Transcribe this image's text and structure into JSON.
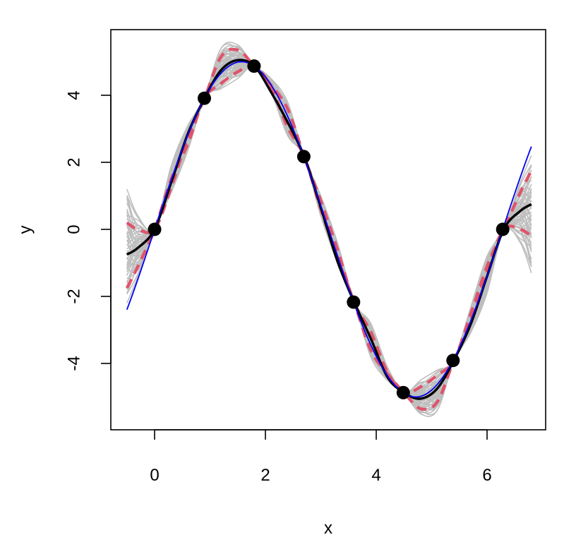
{
  "chart_data": {
    "type": "line",
    "title": "",
    "xlabel": "x",
    "ylabel": "y",
    "xlim": [
      -0.5,
      6.8
    ],
    "ylim": [
      -6,
      6
    ],
    "x_ticks": [
      0,
      2,
      4,
      6
    ],
    "y_ticks": [
      -4,
      -2,
      0,
      2,
      4
    ],
    "x_tick_labels": [
      "0",
      "2",
      "4",
      "6"
    ],
    "y_tick_labels": [
      "-4",
      "-2",
      "0",
      "2",
      "4"
    ],
    "grid": false,
    "legend": "none",
    "colors": {
      "samples": "#bebebe",
      "mean": "#000000",
      "truth": "#0000ee",
      "band": "#df536b",
      "points": "#000000"
    },
    "observed_points": {
      "x": [
        0.0,
        0.898,
        1.795,
        2.693,
        3.59,
        4.488,
        5.386,
        6.283
      ],
      "y": [
        0.0,
        3.91,
        4.87,
        2.17,
        -2.17,
        -4.87,
        -3.91,
        0.0
      ]
    },
    "true_function": {
      "label": "5*sin(x)",
      "x_range": [
        -0.5,
        6.8
      ],
      "amplitude": 5
    },
    "mean_curve": {
      "x": [
        -0.5,
        -0.3,
        0.0,
        0.3,
        0.6,
        0.9,
        1.2,
        1.5,
        1.8,
        2.1,
        2.4,
        2.7,
        3.0,
        3.3,
        3.6,
        3.9,
        4.2,
        4.5,
        4.8,
        5.1,
        5.4,
        5.7,
        6.0,
        6.3,
        6.6,
        6.8
      ],
      "y": [
        -0.75,
        -0.55,
        0.0,
        1.4,
        2.85,
        3.91,
        4.75,
        5.05,
        4.87,
        4.1,
        3.2,
        2.17,
        0.65,
        -0.95,
        -2.17,
        -3.25,
        -4.4,
        -4.87,
        -5.05,
        -4.75,
        -3.91,
        -2.85,
        -1.4,
        0.0,
        0.55,
        0.75
      ]
    },
    "band_upper": {
      "x": [
        -0.5,
        -0.3,
        0.0,
        0.3,
        0.6,
        0.9,
        1.2,
        1.5,
        1.8,
        2.1,
        2.4,
        2.7,
        3.0,
        3.3,
        3.6,
        3.9,
        4.2,
        4.5,
        4.8,
        5.1,
        5.4,
        5.7,
        6.0,
        6.3,
        6.6,
        6.8
      ],
      "y": [
        0.2,
        0.0,
        0.0,
        1.25,
        2.75,
        3.91,
        5.15,
        5.35,
        4.87,
        4.3,
        3.6,
        2.17,
        0.85,
        -0.6,
        -2.17,
        -3.05,
        -4.25,
        -4.87,
        -4.7,
        -4.35,
        -3.91,
        -2.55,
        -1.1,
        0.0,
        1.1,
        1.75
      ]
    },
    "band_lower": {
      "x": [
        -0.5,
        -0.3,
        0.0,
        0.3,
        0.6,
        0.9,
        1.2,
        1.5,
        1.8,
        2.1,
        2.4,
        2.7,
        3.0,
        3.3,
        3.6,
        3.9,
        4.2,
        4.5,
        4.8,
        5.1,
        5.4,
        5.7,
        6.0,
        6.3,
        6.6,
        6.8
      ],
      "y": [
        -1.75,
        -1.1,
        0.0,
        1.5,
        2.55,
        3.91,
        4.35,
        4.7,
        4.87,
        4.25,
        3.05,
        2.17,
        0.6,
        -0.85,
        -2.17,
        -3.6,
        -4.3,
        -4.87,
        -5.35,
        -5.15,
        -3.91,
        -2.75,
        -1.25,
        0.0,
        0.0,
        -0.2
      ]
    },
    "sample_envelope": {
      "x": [
        -0.5,
        -0.3,
        0.0,
        0.3,
        0.6,
        0.9,
        1.2,
        1.5,
        1.8,
        2.1,
        2.4,
        2.7,
        3.0,
        3.3,
        3.6,
        3.9,
        4.2,
        4.5,
        4.8,
        5.1,
        5.4,
        5.7,
        6.0,
        6.3,
        6.6,
        6.8
      ],
      "upper": [
        1.2,
        0.4,
        0.0,
        1.9,
        3.1,
        3.91,
        5.4,
        5.5,
        4.87,
        4.5,
        3.8,
        2.17,
        1.0,
        -0.4,
        -2.17,
        -2.8,
        -4.1,
        -4.87,
        -4.5,
        -4.2,
        -3.91,
        -2.35,
        -0.8,
        0.0,
        1.4,
        2.2
      ],
      "lower": [
        -2.2,
        -1.4,
        0.0,
        1.1,
        2.35,
        3.91,
        4.2,
        4.5,
        4.87,
        4.1,
        2.8,
        2.17,
        0.4,
        -1.0,
        -2.17,
        -3.8,
        -4.5,
        -4.87,
        -5.5,
        -5.4,
        -3.91,
        -3.1,
        -1.9,
        0.0,
        -0.4,
        -1.3
      ]
    }
  }
}
